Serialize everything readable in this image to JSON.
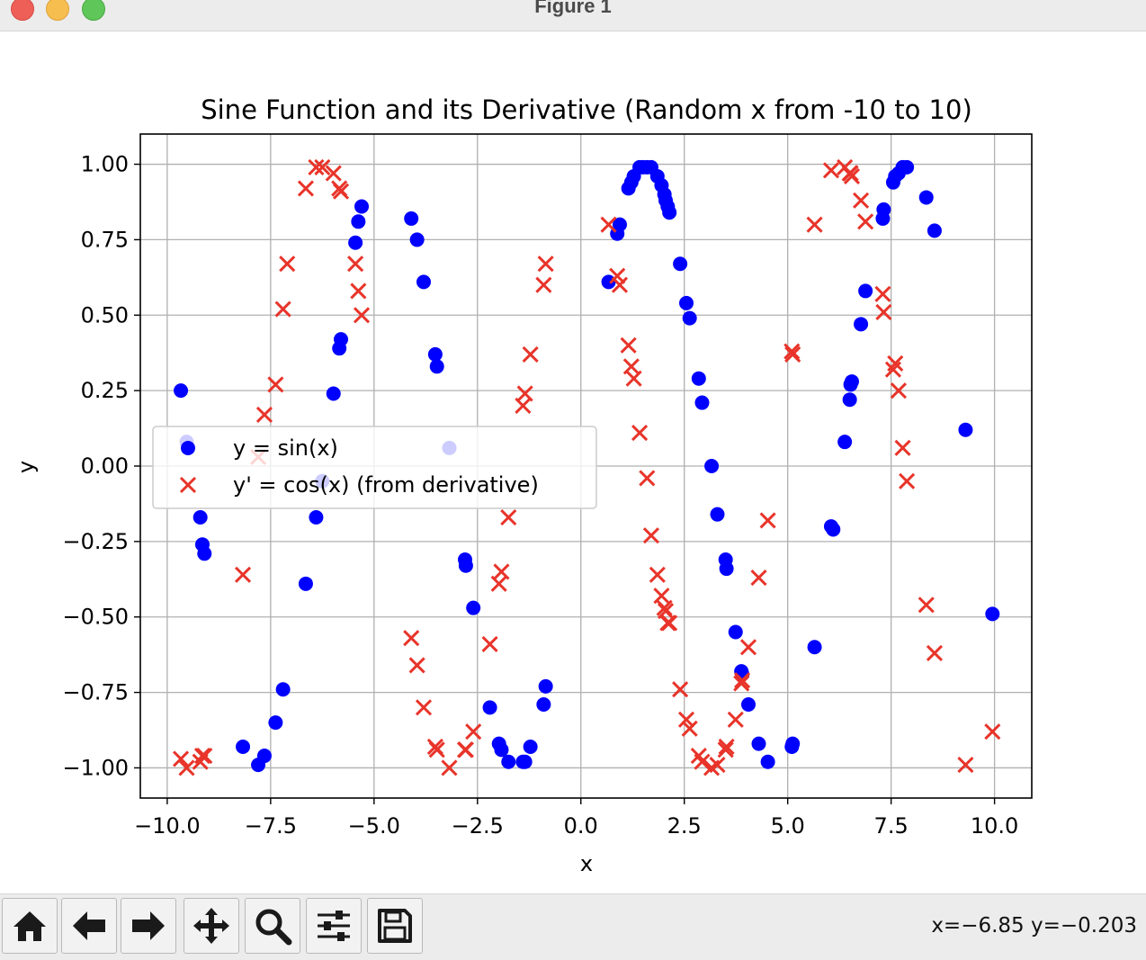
{
  "window": {
    "title": "Figure 1"
  },
  "chart_data": {
    "type": "scatter",
    "title": "Sine Function and its Derivative (Random x from -10 to 10)",
    "xlabel": "x",
    "ylabel": "y",
    "xlim": [
      -10.65,
      10.9
    ],
    "ylim": [
      -1.1,
      1.1
    ],
    "grid": true,
    "legend": {
      "placement": "center-left"
    },
    "x_ticks": [
      -10.0,
      -7.5,
      -5.0,
      -2.5,
      0.0,
      2.5,
      5.0,
      7.5,
      10.0
    ],
    "x_tick_labels": [
      "−10.0",
      "−7.5",
      "−5.0",
      "−2.5",
      "0.0",
      "2.5",
      "5.0",
      "7.5",
      "10.0"
    ],
    "y_ticks": [
      1.0,
      0.75,
      0.5,
      0.25,
      0.0,
      -0.25,
      -0.5,
      -0.75,
      -1.0
    ],
    "y_tick_labels": [
      "1.00",
      "0.75",
      "0.50",
      "0.25",
      "0.00",
      "−0.25",
      "−0.50",
      "−0.75",
      "−1.00"
    ],
    "series": [
      {
        "name": "y = sin(x)",
        "marker": "circle",
        "color": "#0000ff",
        "x": [
          -9.67,
          -9.53,
          -9.2,
          -9.15,
          -9.1,
          -8.17,
          -7.8,
          -7.65,
          -7.38,
          -7.2,
          -6.65,
          -6.4,
          -6.25,
          -5.98,
          -5.84,
          -5.8,
          -5.45,
          -5.38,
          -5.3,
          -4.1,
          -3.96,
          -3.8,
          -3.52,
          -3.48,
          -3.18,
          -2.8,
          -2.78,
          -2.6,
          -2.2,
          -1.98,
          -1.92,
          -1.75,
          -1.4,
          -1.35,
          -1.22,
          -0.9,
          -0.85,
          0.67,
          0.88,
          0.94,
          1.15,
          1.22,
          1.28,
          1.42,
          1.5,
          1.6,
          1.7,
          1.85,
          1.95,
          2.02,
          2.05,
          2.1,
          2.14,
          2.4,
          2.55,
          2.63,
          2.85,
          2.93,
          3.16,
          3.3,
          3.5,
          3.52,
          3.74,
          3.88,
          3.9,
          4.05,
          4.3,
          4.52,
          5.1,
          5.12,
          5.65,
          6.05,
          6.1,
          6.38,
          6.5,
          6.52,
          6.55,
          6.77,
          6.88,
          7.3,
          7.32,
          7.55,
          7.6,
          7.68,
          7.78,
          7.88,
          8.35,
          8.55,
          9.3,
          9.95
        ],
        "y": [
          0.25,
          0.08,
          -0.17,
          -0.26,
          -0.29,
          -0.93,
          -0.99,
          -0.96,
          -0.85,
          -0.74,
          -0.39,
          -0.17,
          -0.05,
          0.24,
          0.39,
          0.42,
          0.74,
          0.81,
          0.86,
          0.82,
          0.75,
          0.61,
          0.37,
          0.33,
          0.06,
          -0.31,
          -0.33,
          -0.47,
          -0.8,
          -0.92,
          -0.94,
          -0.98,
          -0.98,
          -0.98,
          -0.93,
          -0.79,
          -0.73,
          0.61,
          0.77,
          0.8,
          0.92,
          0.94,
          0.96,
          0.99,
          0.99,
          0.99,
          0.99,
          0.96,
          0.93,
          0.9,
          0.88,
          0.86,
          0.84,
          0.67,
          0.54,
          0.49,
          0.29,
          0.21,
          0.0,
          -0.16,
          -0.31,
          -0.34,
          -0.55,
          -0.68,
          -0.69,
          -0.79,
          -0.92,
          -0.98,
          -0.93,
          -0.92,
          -0.6,
          -0.2,
          -0.21,
          0.08,
          0.22,
          0.27,
          0.28,
          0.47,
          0.58,
          0.82,
          0.85,
          0.94,
          0.96,
          0.97,
          0.99,
          0.99,
          0.89,
          0.78,
          0.12,
          -0.49
        ]
      },
      {
        "name": "y' = cos(x) (from derivative)",
        "marker": "x",
        "color": "#e8342a",
        "x": [
          -9.67,
          -9.53,
          -9.2,
          -9.15,
          -9.1,
          -8.17,
          -7.8,
          -7.65,
          -7.38,
          -7.2,
          -7.1,
          -6.65,
          -6.4,
          -6.25,
          -5.98,
          -5.84,
          -5.8,
          -5.45,
          -5.38,
          -5.3,
          -4.1,
          -3.96,
          -3.8,
          -3.52,
          -3.48,
          -3.18,
          -2.8,
          -2.78,
          -2.6,
          -2.2,
          -1.98,
          -1.92,
          -1.75,
          -1.4,
          -1.35,
          -1.22,
          -0.9,
          -0.85,
          0.67,
          0.88,
          0.94,
          1.15,
          1.22,
          1.28,
          1.42,
          1.6,
          1.7,
          1.85,
          1.95,
          2.02,
          2.05,
          2.1,
          2.14,
          2.4,
          2.55,
          2.63,
          2.85,
          2.93,
          3.16,
          3.3,
          3.5,
          3.52,
          3.74,
          3.88,
          3.9,
          4.05,
          4.3,
          4.52,
          5.1,
          5.12,
          5.65,
          6.05,
          6.38,
          6.5,
          6.52,
          6.55,
          6.77,
          6.88,
          7.3,
          7.32,
          7.55,
          7.6,
          7.68,
          7.78,
          7.88,
          8.35,
          8.55,
          9.3,
          9.95
        ],
        "y": [
          -0.97,
          -1.0,
          -0.98,
          -0.96,
          -0.96,
          -0.36,
          0.03,
          0.17,
          0.27,
          0.52,
          0.67,
          0.92,
          0.99,
          0.99,
          0.97,
          0.92,
          0.91,
          0.67,
          0.58,
          0.5,
          -0.57,
          -0.66,
          -0.8,
          -0.93,
          -0.94,
          -1.0,
          -0.94,
          -0.94,
          -0.88,
          -0.59,
          -0.39,
          -0.35,
          -0.17,
          0.2,
          0.24,
          0.37,
          0.6,
          0.67,
          0.8,
          0.63,
          0.6,
          0.4,
          0.33,
          0.29,
          0.11,
          -0.04,
          -0.23,
          -0.36,
          -0.43,
          -0.47,
          -0.48,
          -0.52,
          -0.52,
          -0.74,
          -0.84,
          -0.87,
          -0.96,
          -0.98,
          -1.0,
          -0.99,
          -0.94,
          -0.93,
          -0.84,
          -0.72,
          -0.71,
          -0.6,
          -0.37,
          -0.18,
          0.38,
          0.37,
          0.8,
          0.98,
          0.99,
          0.97,
          0.97,
          0.96,
          0.88,
          0.81,
          0.57,
          0.51,
          0.32,
          0.34,
          0.25,
          0.06,
          -0.05,
          -0.46,
          -0.62,
          -0.99,
          -0.88
        ]
      }
    ]
  },
  "toolbar": {
    "buttons": [
      {
        "name": "home-icon"
      },
      {
        "name": "back-arrow-icon"
      },
      {
        "name": "forward-arrow-icon"
      },
      {
        "name": "pan-move-icon"
      },
      {
        "name": "zoom-magnifier-icon"
      },
      {
        "name": "configure-subplots-icon"
      },
      {
        "name": "save-floppy-icon"
      }
    ],
    "cursor_readout": "x=−6.85 y=−0.203"
  }
}
